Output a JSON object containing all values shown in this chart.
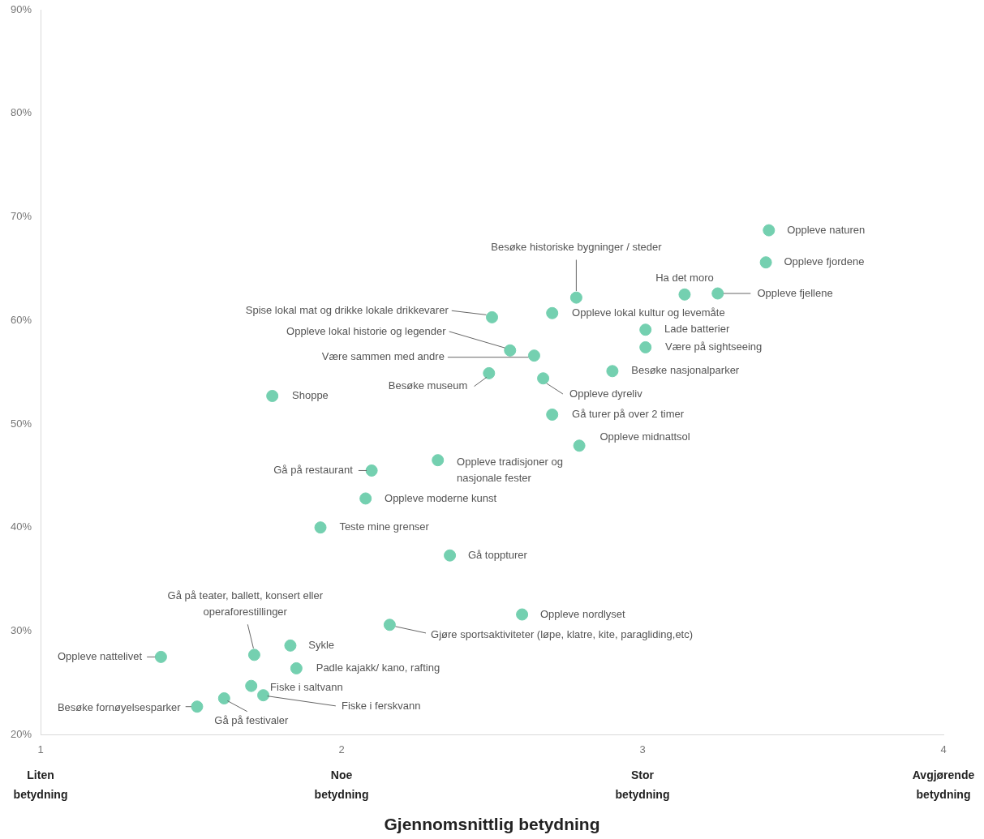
{
  "chart_data": {
    "type": "scatter",
    "xlabel": "Gjennomsnittlig betydning",
    "color": "#74d0b0",
    "marker": "circle",
    "x": [
      3.42,
      3.41,
      3.14,
      3.25,
      2.78,
      2.7,
      2.5,
      3.01,
      3.01,
      2.56,
      2.64,
      2.9,
      2.49,
      2.67,
      1.77,
      2.7,
      2.79,
      2.32,
      2.1,
      2.08,
      1.93,
      2.36,
      2.6,
      2.16,
      1.71,
      1.83,
      1.4,
      1.85,
      1.7,
      1.74,
      1.52,
      1.61
    ],
    "values": [
      68.7,
      65.6,
      62.5,
      62.6,
      62.2,
      60.7,
      60.3,
      59.1,
      57.4,
      57.1,
      56.6,
      55.1,
      54.9,
      54.4,
      52.7,
      50.9,
      47.9,
      46.5,
      45.5,
      42.8,
      40.0,
      37.3,
      31.6,
      30.6,
      27.7,
      28.6,
      27.5,
      26.4,
      24.7,
      23.8,
      22.7,
      23.5
    ],
    "xlim": [
      1,
      4
    ],
    "ylim": [
      20,
      90
    ],
    "xticks": [
      1,
      2,
      3,
      4
    ],
    "yticks": [
      {
        "value": 20,
        "label": "20%"
      },
      {
        "value": 30,
        "label": "30%"
      },
      {
        "value": 40,
        "label": "40%"
      },
      {
        "value": 50,
        "label": "50%"
      },
      {
        "value": 60,
        "label": "60%"
      },
      {
        "value": 70,
        "label": "70%"
      },
      {
        "value": 80,
        "label": "80%"
      },
      {
        "value": 90,
        "label": "90%"
      }
    ],
    "annotations": [
      {
        "text": "Oppleve naturen",
        "x": 3.42,
        "y": 68.7
      },
      {
        "text": "Oppleve fjordene",
        "x": 3.41,
        "y": 65.6
      },
      {
        "text": "Ha det moro",
        "x": 3.14,
        "y": 62.5
      },
      {
        "text": "Oppleve fjellene",
        "x": 3.25,
        "y": 62.6
      },
      {
        "text": "Besøke historiske bygninger / steder",
        "x": 2.78,
        "y": 62.2
      },
      {
        "text": "Oppleve lokal kultur og levemåte",
        "x": 2.7,
        "y": 60.7
      },
      {
        "text": "Spise lokal mat og drikke lokale drikkevarer",
        "x": 2.5,
        "y": 60.3
      },
      {
        "text": "Lade batterier",
        "x": 3.01,
        "y": 59.1
      },
      {
        "text": "Være på sightseeing",
        "x": 3.01,
        "y": 57.4
      },
      {
        "text": "Oppleve lokal historie og legender",
        "x": 2.56,
        "y": 57.1
      },
      {
        "text": "Være sammen med andre",
        "x": 2.64,
        "y": 56.6
      },
      {
        "text": "Besøke nasjonalparker",
        "x": 2.9,
        "y": 55.1
      },
      {
        "text": "Besøke museum",
        "x": 2.49,
        "y": 54.9
      },
      {
        "text": "Oppleve dyreliv",
        "x": 2.67,
        "y": 54.4
      },
      {
        "text": "Shoppe",
        "x": 1.77,
        "y": 52.7
      },
      {
        "text": "Gå turer på over 2 timer",
        "x": 2.7,
        "y": 50.9
      },
      {
        "text": "Oppleve midnattsol",
        "x": 2.79,
        "y": 47.9
      },
      {
        "text": "Oppleve tradisjoner og nasjonale fester",
        "x": 2.32,
        "y": 46.5
      },
      {
        "text": "Gå på restaurant",
        "x": 2.1,
        "y": 45.5
      },
      {
        "text": "Oppleve moderne kunst",
        "x": 2.08,
        "y": 42.8
      },
      {
        "text": "Teste mine grenser",
        "x": 1.93,
        "y": 40.0
      },
      {
        "text": "Gå toppturer",
        "x": 2.36,
        "y": 37.3
      },
      {
        "text": "Oppleve nordlyset",
        "x": 2.6,
        "y": 31.6
      },
      {
        "text": "Gjøre sportsaktiviteter (løpe, klatre, kite, paragliding,etc)",
        "x": 2.16,
        "y": 30.6
      },
      {
        "text": "Gå på teater, ballett, konsert eller operaforestillinger",
        "x": 1.71,
        "y": 27.7
      },
      {
        "text": "Sykle",
        "x": 1.83,
        "y": 28.6
      },
      {
        "text": "Oppleve nattelivet",
        "x": 1.4,
        "y": 27.5
      },
      {
        "text": "Padle kajakk/ kano, rafting",
        "x": 1.85,
        "y": 26.4
      },
      {
        "text": "Fiske i saltvann",
        "x": 1.7,
        "y": 24.7
      },
      {
        "text": "Fiske i ferskvann",
        "x": 1.74,
        "y": 23.8
      },
      {
        "text": "Besøke fornøyelsesparker",
        "x": 1.52,
        "y": 22.7
      },
      {
        "text": "Gå på festivaler",
        "x": 1.61,
        "y": 23.5
      },
      "Liten betydning",
      "Noe betydning",
      "Stor betydning",
      "Avgjørende betydning"
    ]
  }
}
